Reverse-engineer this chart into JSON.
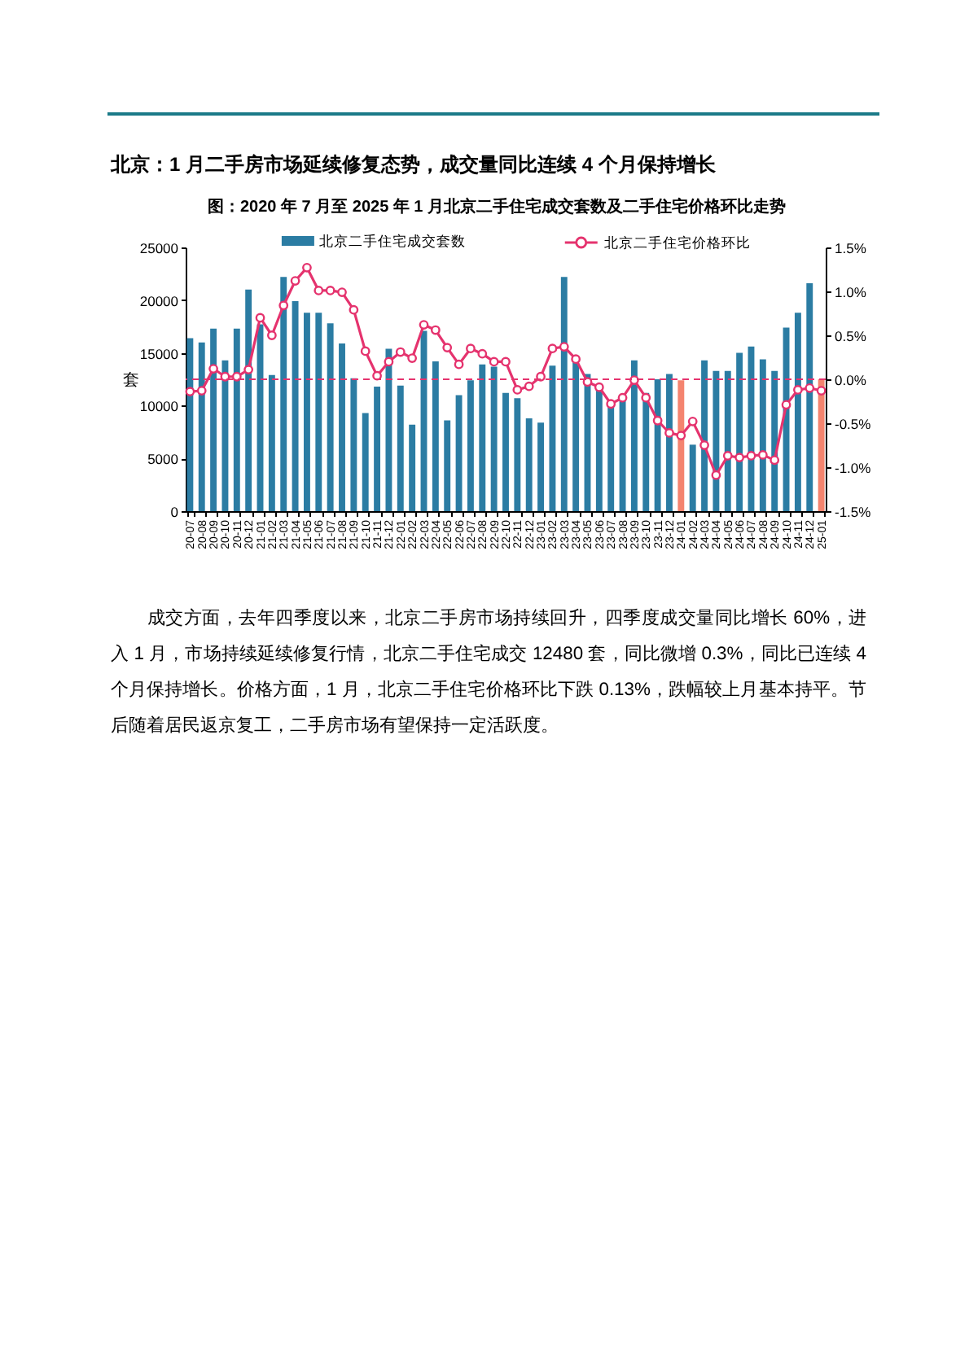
{
  "chart_data": {
    "type": "bar",
    "title": "北京：1 月二手房市场延续修复态势，成交量同比连续 4 个月保持增长",
    "subtitle": "图：2020 年 7 月至 2025 年 1 月北京二手住宅成交套数及二手住宅价格环比走势",
    "ylabel": "套",
    "annotations": [
      "成交方面，去年四季度以来，北京二手房市场持续回升，四季度成交量同比增长 60%，进入 1 月，市场持续延续修复行情，北京二手住宅成交 12480 套，同比微增 0.3%，同比已连续 4 个月保持增长。价格方面，1 月，北京二手住宅价格环比下跌 0.13%，跌幅较上月基本持平。节后随着居民返京复工，二手房市场有望保持一定活跃度。"
    ],
    "categories": [
      "20-07",
      "20-08",
      "20-09",
      "20-10",
      "20-11",
      "20-12",
      "21-01",
      "21-02",
      "21-03",
      "21-04",
      "21-05",
      "21-06",
      "21-07",
      "21-08",
      "21-09",
      "21-10",
      "21-11",
      "21-12",
      "22-01",
      "22-02",
      "22-03",
      "22-04",
      "22-05",
      "22-06",
      "22-07",
      "22-08",
      "22-09",
      "22-10",
      "22-11",
      "22-12",
      "23-01",
      "23-02",
      "23-03",
      "23-04",
      "23-05",
      "23-06",
      "23-07",
      "23-08",
      "23-09",
      "23-10",
      "23-11",
      "23-12",
      "24-01",
      "24-02",
      "24-03",
      "24-04",
      "24-05",
      "24-06",
      "24-07",
      "24-08",
      "24-09",
      "24-10",
      "24-11",
      "24-12",
      "25-01"
    ],
    "series": [
      {
        "name": "北京二手住宅成交套数",
        "color": "#2b7ca3",
        "colors": [
          "#2b7ca3",
          "#2b7ca3",
          "#2b7ca3",
          "#2b7ca3",
          "#2b7ca3",
          "#2b7ca3",
          "#2b7ca3",
          "#2b7ca3",
          "#2b7ca3",
          "#2b7ca3",
          "#2b7ca3",
          "#2b7ca3",
          "#2b7ca3",
          "#2b7ca3",
          "#2b7ca3",
          "#2b7ca3",
          "#2b7ca3",
          "#2b7ca3",
          "#2b7ca3",
          "#2b7ca3",
          "#2b7ca3",
          "#2b7ca3",
          "#2b7ca3",
          "#2b7ca3",
          "#2b7ca3",
          "#2b7ca3",
          "#2b7ca3",
          "#2b7ca3",
          "#2b7ca3",
          "#2b7ca3",
          "#2b7ca3",
          "#2b7ca3",
          "#2b7ca3",
          "#2b7ca3",
          "#2b7ca3",
          "#2b7ca3",
          "#2b7ca3",
          "#2b7ca3",
          "#2b7ca3",
          "#2b7ca3",
          "#2b7ca3",
          "#2b7ca3",
          "#f4846f",
          "#2b7ca3",
          "#2b7ca3",
          "#2b7ca3",
          "#2b7ca3",
          "#2b7ca3",
          "#2b7ca3",
          "#2b7ca3",
          "#2b7ca3",
          "#2b7ca3",
          "#2b7ca3",
          "#2b7ca3",
          "#f4846f"
        ],
        "values": [
          16400,
          16000,
          17300,
          14300,
          17300,
          21000,
          17700,
          12900,
          22200,
          19900,
          18800,
          18800,
          17800,
          15900,
          12600,
          9300,
          11800,
          15400,
          11900,
          8200,
          17100,
          14200,
          8600,
          11000,
          12400,
          13900,
          13700,
          11200,
          10700,
          8800,
          8400,
          13800,
          22200,
          14300,
          13000,
          11500,
          9900,
          10500,
          14300,
          11200,
          12500,
          13000,
          12400,
          6300,
          14300,
          13300,
          13300,
          15000,
          15600,
          14400,
          13300,
          17400,
          18800,
          21600,
          12500
        ]
      },
      {
        "name": "北京二手住宅价格环比",
        "type": "line",
        "axis": "y2",
        "color": "#e5336e",
        "values": [
          -0.14,
          -0.13,
          0.12,
          0.03,
          0.03,
          0.11,
          0.7,
          0.5,
          0.84,
          1.12,
          1.27,
          1.01,
          1.01,
          0.99,
          0.79,
          0.32,
          0.04,
          0.2,
          0.31,
          0.24,
          0.62,
          0.56,
          0.36,
          0.17,
          0.35,
          0.29,
          0.2,
          0.2,
          -0.12,
          -0.08,
          0.03,
          0.35,
          0.37,
          0.23,
          -0.03,
          -0.09,
          -0.28,
          -0.21,
          -0.01,
          -0.21,
          -0.47,
          -0.61,
          -0.64,
          -0.48,
          -0.75,
          -1.09,
          -0.87,
          -0.89,
          -0.87,
          -0.86,
          -0.92,
          -0.29,
          -0.12,
          -0.1,
          -0.13
        ]
      }
    ],
    "ylim": [
      0,
      25000
    ],
    "yticks": [
      0,
      5000,
      10000,
      15000,
      20000,
      25000
    ],
    "y2lim": [
      -1.5,
      1.5
    ],
    "y2ticks": [
      {
        "value": -1.5,
        "label": "-1.5%"
      },
      {
        "value": -1,
        "label": "-1.0%"
      },
      {
        "value": -0.5,
        "label": "-0.5%"
      },
      {
        "value": 0,
        "label": "0.0%"
      },
      {
        "value": 0.5,
        "label": "0.5%"
      },
      {
        "value": 1,
        "label": "1.0%"
      },
      {
        "value": 1.5,
        "label": "1.5%"
      }
    ],
    "ref_lines": [
      {
        "axis": "y2",
        "value": 0,
        "color": "#e5336e",
        "line_style": "dashed"
      }
    ],
    "legend": "top",
    "marker": "circle",
    "grid": false
  }
}
